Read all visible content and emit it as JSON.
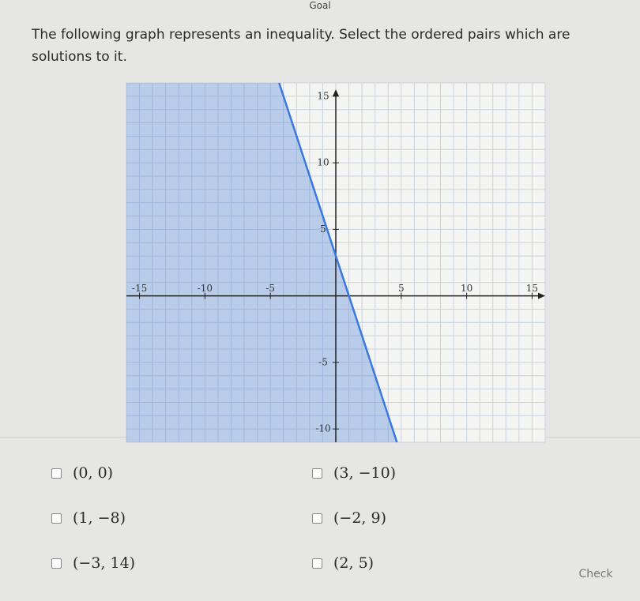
{
  "header": {
    "title": "Goal"
  },
  "question": "The following graph represents an inequality. Select the ordered pairs which are solutions to it.",
  "graph": {
    "xlim": [
      -16,
      16
    ],
    "ylim": [
      -11,
      16
    ],
    "xticks": [
      -15,
      -10,
      -5,
      5,
      10,
      15
    ],
    "yticks": [
      -10,
      -5,
      5,
      10,
      15
    ],
    "boundary": {
      "x": [
        -4.33,
        4.67
      ],
      "y": [
        16,
        -11
      ]
    }
  },
  "options": {
    "left": [
      "(0, 0)",
      "(1, −8)",
      "(−3, 14)"
    ],
    "right": [
      "(3, −10)",
      "(−2, 9)",
      "(2, 5)"
    ]
  },
  "button": "Check"
}
